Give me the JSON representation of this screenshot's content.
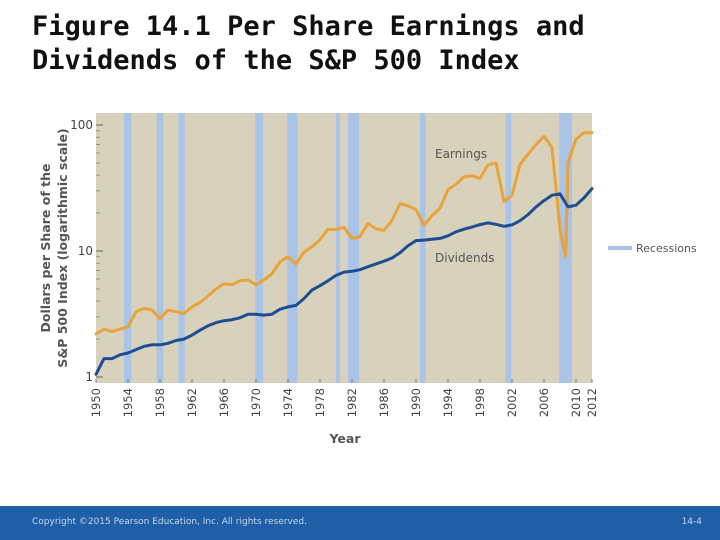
{
  "slide": {
    "title": "Figure 14.1 Per Share Earnings and Dividends of the S&P 500 Index",
    "copyright": "Copyright ©2015 Pearson Education, Inc. All rights reserved.",
    "page_number": "14-4"
  },
  "chart_data": {
    "type": "line",
    "title": "",
    "xlabel": "Year",
    "ylabel": "Dollars per Share of the S&P 500 Index (logarithmic scale)",
    "y_scale": "log",
    "xlim": [
      1950,
      2012
    ],
    "ylim": [
      1,
      100
    ],
    "x_ticks": [
      "1950",
      "1954",
      "1958",
      "1962",
      "1966",
      "1970",
      "1974",
      "1978",
      "1982",
      "1986",
      "1990",
      "1994",
      "1998",
      "2002",
      "2006",
      "2010",
      "2012"
    ],
    "y_ticks": [
      "1",
      "10",
      "100"
    ],
    "grid": false,
    "background_color": "#d8d2bd",
    "recession_color": "#a9c4e6",
    "legend": {
      "placement": "right",
      "entries": [
        {
          "label": "Recessions",
          "color": "#a9c4e6"
        }
      ]
    },
    "recessions": [
      [
        1953.5,
        1954.4
      ],
      [
        1957.6,
        1958.4
      ],
      [
        1960.3,
        1961.1
      ],
      [
        1969.9,
        1970.9
      ],
      [
        1973.9,
        1975.2
      ],
      [
        1980.0,
        1980.5
      ],
      [
        1981.5,
        1982.9
      ],
      [
        1990.5,
        1991.2
      ],
      [
        2001.2,
        2001.9
      ],
      [
        2007.9,
        2009.5
      ]
    ],
    "series": [
      {
        "name": "Earnings",
        "color": "#e8a33a",
        "points": [
          [
            1950,
            2.2
          ],
          [
            1951,
            2.4
          ],
          [
            1952,
            2.3
          ],
          [
            1953,
            2.4
          ],
          [
            1954,
            2.5
          ],
          [
            1955,
            3.3
          ],
          [
            1956,
            3.5
          ],
          [
            1957,
            3.4
          ],
          [
            1958,
            2.9
          ],
          [
            1959,
            3.4
          ],
          [
            1960,
            3.3
          ],
          [
            1961,
            3.2
          ],
          [
            1962,
            3.6
          ],
          [
            1963,
            3.9
          ],
          [
            1964,
            4.4
          ],
          [
            1965,
            5.0
          ],
          [
            1966,
            5.5
          ],
          [
            1967,
            5.4
          ],
          [
            1968,
            5.8
          ],
          [
            1969,
            5.9
          ],
          [
            1970,
            5.4
          ],
          [
            1971,
            5.9
          ],
          [
            1972,
            6.6
          ],
          [
            1973,
            8.2
          ],
          [
            1974,
            9.0
          ],
          [
            1975,
            7.9
          ],
          [
            1976,
            9.8
          ],
          [
            1977,
            10.8
          ],
          [
            1978,
            12.3
          ],
          [
            1979,
            14.9
          ],
          [
            1980,
            14.8
          ],
          [
            1981,
            15.4
          ],
          [
            1982,
            12.6
          ],
          [
            1983,
            13.0
          ],
          [
            1984,
            16.6
          ],
          [
            1985,
            15.0
          ],
          [
            1986,
            14.6
          ],
          [
            1987,
            17.5
          ],
          [
            1988,
            23.8
          ],
          [
            1989,
            22.9
          ],
          [
            1990,
            21.3
          ],
          [
            1991,
            15.9
          ],
          [
            1992,
            19.1
          ],
          [
            1993,
            21.9
          ],
          [
            1994,
            30.6
          ],
          [
            1995,
            33.9
          ],
          [
            1996,
            38.7
          ],
          [
            1997,
            39.6
          ],
          [
            1998,
            37.7
          ],
          [
            1999,
            48.2
          ],
          [
            2000,
            50.0
          ],
          [
            2001,
            24.7
          ],
          [
            2002,
            27.6
          ],
          [
            2003,
            48.7
          ],
          [
            2004,
            58.6
          ],
          [
            2005,
            69.9
          ],
          [
            2006,
            81.5
          ],
          [
            2007,
            66.2
          ],
          [
            2008,
            14.9
          ],
          [
            2008.7,
            9.0
          ],
          [
            2009,
            50.0
          ],
          [
            2010,
            77.4
          ],
          [
            2011,
            86.9
          ],
          [
            2012,
            87.0
          ]
        ]
      },
      {
        "name": "Dividends",
        "color": "#1d4e94",
        "points": [
          [
            1950,
            1.05
          ],
          [
            1951,
            1.4
          ],
          [
            1952,
            1.4
          ],
          [
            1953,
            1.5
          ],
          [
            1954,
            1.55
          ],
          [
            1955,
            1.65
          ],
          [
            1956,
            1.75
          ],
          [
            1957,
            1.8
          ],
          [
            1958,
            1.8
          ],
          [
            1959,
            1.85
          ],
          [
            1960,
            1.95
          ],
          [
            1961,
            2.0
          ],
          [
            1962,
            2.15
          ],
          [
            1963,
            2.35
          ],
          [
            1964,
            2.55
          ],
          [
            1965,
            2.7
          ],
          [
            1966,
            2.8
          ],
          [
            1967,
            2.85
          ],
          [
            1968,
            2.95
          ],
          [
            1969,
            3.15
          ],
          [
            1970,
            3.15
          ],
          [
            1971,
            3.1
          ],
          [
            1972,
            3.15
          ],
          [
            1973,
            3.45
          ],
          [
            1974,
            3.6
          ],
          [
            1975,
            3.7
          ],
          [
            1976,
            4.2
          ],
          [
            1977,
            4.9
          ],
          [
            1978,
            5.3
          ],
          [
            1979,
            5.8
          ],
          [
            1980,
            6.4
          ],
          [
            1981,
            6.8
          ],
          [
            1982,
            6.9
          ],
          [
            1983,
            7.1
          ],
          [
            1984,
            7.5
          ],
          [
            1985,
            7.9
          ],
          [
            1986,
            8.3
          ],
          [
            1987,
            8.8
          ],
          [
            1988,
            9.7
          ],
          [
            1989,
            11.0
          ],
          [
            1990,
            12.1
          ],
          [
            1991,
            12.2
          ],
          [
            1992,
            12.4
          ],
          [
            1993,
            12.6
          ],
          [
            1994,
            13.2
          ],
          [
            1995,
            14.2
          ],
          [
            1996,
            14.9
          ],
          [
            1997,
            15.5
          ],
          [
            1998,
            16.2
          ],
          [
            1999,
            16.7
          ],
          [
            2000,
            16.3
          ],
          [
            2001,
            15.7
          ],
          [
            2002,
            16.1
          ],
          [
            2003,
            17.4
          ],
          [
            2004,
            19.4
          ],
          [
            2005,
            22.4
          ],
          [
            2006,
            25.1
          ],
          [
            2007,
            27.7
          ],
          [
            2008,
            28.4
          ],
          [
            2009,
            22.4
          ],
          [
            2010,
            23.1
          ],
          [
            2011,
            26.4
          ],
          [
            2012,
            31.3
          ]
        ]
      }
    ]
  }
}
